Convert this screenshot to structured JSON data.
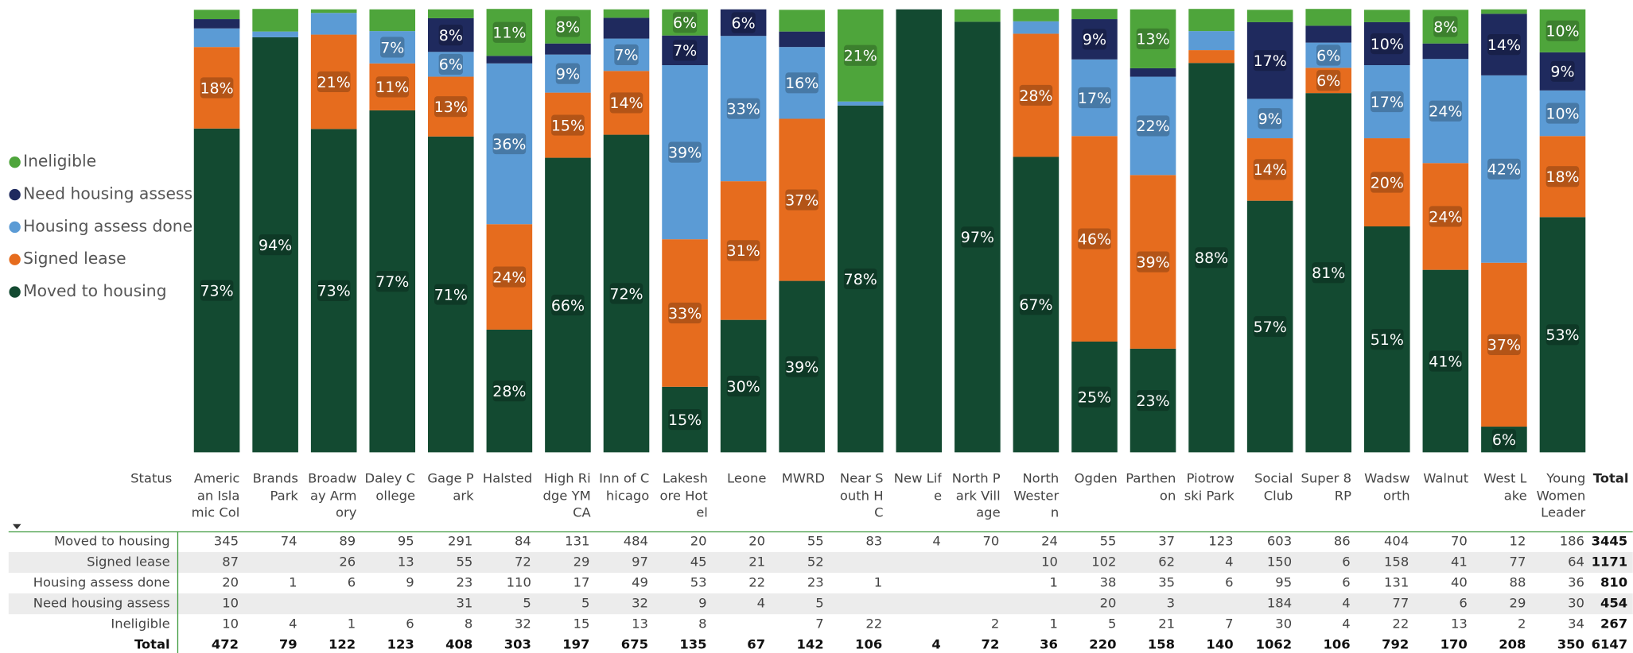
{
  "chart_data": {
    "type": "stacked_bar_100",
    "categories": [
      "American Islamic College",
      "Brands Park",
      "Broadway Armory",
      "Daley College",
      "Gage Park",
      "Halsted",
      "High Ridge YMCA",
      "Inn of Chicago",
      "Lakeshore Hotel",
      "Leone",
      "MWRD",
      "Near South HC",
      "New Life",
      "North Park Village",
      "North Western",
      "Ogden",
      "Parthenon",
      "Piotrowski Park",
      "Social Club",
      "Super 8 RP",
      "Wadsworth",
      "Walnut",
      "West Lake",
      "Young Women Leadership"
    ],
    "ylim": [
      0,
      100
    ],
    "legend": "left",
    "series": [
      {
        "name": "Moved to housing",
        "color": "#134a31",
        "values": [
          73.1,
          93.7,
          73.0,
          77.2,
          71.3,
          27.7,
          66.5,
          71.7,
          14.8,
          29.9,
          38.7,
          78.3,
          100,
          97.2,
          66.7,
          25.0,
          23.4,
          87.9,
          56.8,
          81.1,
          51.0,
          41.2,
          5.8,
          53.1
        ],
        "value_labels": [
          "73%",
          "94%",
          "73%",
          "77%",
          "71%",
          "28%",
          "66%",
          "72%",
          "15%",
          "30%",
          "39%",
          "78%",
          null,
          "97%",
          "67%",
          "25%",
          "23%",
          "88%",
          "57%",
          "81%",
          "51%",
          "41%",
          "6%",
          "53%"
        ]
      },
      {
        "name": "Signed lease",
        "color": "#e66c1e",
        "values": [
          18.4,
          0,
          21.3,
          10.6,
          13.5,
          23.8,
          14.7,
          14.4,
          33.3,
          31.3,
          36.6,
          0,
          0,
          0,
          27.8,
          46.4,
          39.2,
          2.9,
          14.1,
          5.7,
          19.9,
          24.1,
          37.0,
          18.3
        ],
        "value_labels": [
          "18%",
          null,
          "21%",
          "11%",
          "13%",
          "24%",
          "15%",
          "14%",
          "33%",
          "31%",
          "37%",
          null,
          null,
          null,
          "28%",
          "46%",
          "39%",
          null,
          "14%",
          "6%",
          "20%",
          "24%",
          "37%",
          "18%"
        ]
      },
      {
        "name": "Housing assess done",
        "color": "#5b9bd5",
        "values": [
          4.2,
          1.3,
          4.9,
          7.3,
          5.6,
          36.3,
          8.6,
          7.3,
          39.3,
          32.8,
          16.2,
          0.9,
          0,
          0,
          2.8,
          17.3,
          22.2,
          4.3,
          8.9,
          5.7,
          16.5,
          23.5,
          42.3,
          10.3
        ],
        "value_labels": [
          null,
          null,
          null,
          "7%",
          "6%",
          "36%",
          "9%",
          "7%",
          "39%",
          "33%",
          "16%",
          null,
          null,
          null,
          null,
          "17%",
          "22%",
          null,
          "9%",
          "6%",
          "17%",
          "24%",
          "42%",
          "10%"
        ]
      },
      {
        "name": "Need housing assess",
        "color": "#1f2a5e",
        "values": [
          2.1,
          0,
          0,
          0,
          7.6,
          1.7,
          2.5,
          4.7,
          6.7,
          6.0,
          3.5,
          0,
          0,
          0,
          0,
          9.1,
          1.9,
          0,
          17.3,
          3.8,
          9.7,
          3.5,
          13.9,
          8.6
        ],
        "value_labels": [
          null,
          null,
          null,
          null,
          "8%",
          null,
          null,
          null,
          "7%",
          "6%",
          null,
          null,
          null,
          null,
          null,
          "9%",
          null,
          null,
          "17%",
          null,
          "10%",
          null,
          "14%",
          "9%"
        ]
      },
      {
        "name": "Ineligible",
        "color": "#4ea53b",
        "values": [
          2.1,
          5.1,
          0.8,
          4.9,
          2.0,
          10.6,
          7.6,
          1.9,
          5.9,
          0,
          4.9,
          20.8,
          0,
          2.8,
          2.8,
          2.3,
          13.3,
          5.0,
          2.8,
          3.8,
          2.8,
          7.6,
          1.0,
          9.7
        ],
        "value_labels": [
          null,
          null,
          null,
          null,
          null,
          "11%",
          "8%",
          null,
          "6%",
          null,
          null,
          "21%",
          null,
          null,
          null,
          null,
          "13%",
          null,
          null,
          null,
          null,
          "8%",
          null,
          "10%"
        ]
      }
    ]
  },
  "table": {
    "corner": "Status",
    "total_header": "Total",
    "rows": [
      {
        "label": "Moved to housing",
        "values": [
          345,
          74,
          89,
          95,
          291,
          84,
          131,
          484,
          20,
          20,
          55,
          83,
          4,
          70,
          24,
          55,
          37,
          123,
          603,
          86,
          404,
          70,
          12,
          186
        ],
        "total": 3445
      },
      {
        "label": "Signed lease",
        "values": [
          87,
          null,
          26,
          13,
          55,
          72,
          29,
          97,
          45,
          21,
          52,
          null,
          null,
          null,
          10,
          102,
          62,
          4,
          150,
          6,
          158,
          41,
          77,
          64
        ],
        "total": 1171
      },
      {
        "label": "Housing assess done",
        "values": [
          20,
          1,
          6,
          9,
          23,
          110,
          17,
          49,
          53,
          22,
          23,
          1,
          null,
          null,
          1,
          38,
          35,
          6,
          95,
          6,
          131,
          40,
          88,
          36
        ],
        "total": 810
      },
      {
        "label": "Need housing assess",
        "values": [
          10,
          null,
          null,
          null,
          31,
          5,
          5,
          32,
          9,
          4,
          5,
          null,
          null,
          null,
          null,
          20,
          3,
          null,
          184,
          4,
          77,
          6,
          29,
          30
        ],
        "total": 454
      },
      {
        "label": "Ineligible",
        "values": [
          10,
          4,
          1,
          6,
          8,
          32,
          15,
          13,
          8,
          null,
          7,
          22,
          null,
          2,
          1,
          5,
          21,
          7,
          30,
          4,
          22,
          13,
          2,
          34
        ],
        "total": 267
      }
    ],
    "total_row": {
      "label": "Total",
      "values": [
        472,
        79,
        122,
        123,
        408,
        303,
        197,
        675,
        135,
        67,
        142,
        106,
        4,
        72,
        36,
        220,
        158,
        140,
        1062,
        106,
        792,
        170,
        208,
        350
      ],
      "total": 6147
    }
  }
}
